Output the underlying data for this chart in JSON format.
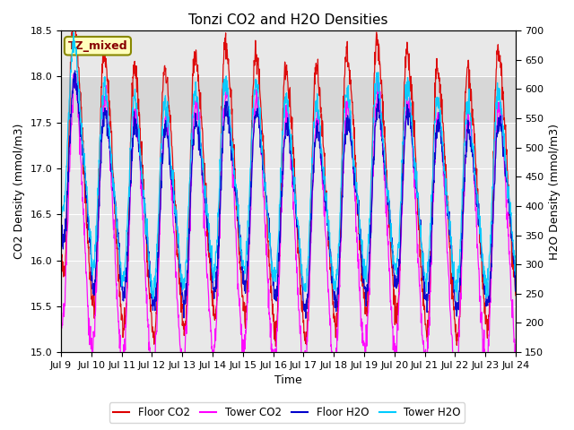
{
  "title": "Tonzi CO2 and H2O Densities",
  "xlabel": "Time",
  "ylabel_left": "CO2 Density (mmol/m3)",
  "ylabel_right": "H2O Density (mmol/m3)",
  "xlim_start": 0,
  "xlim_end": 15,
  "ylim_left": [
    15.0,
    18.5
  ],
  "ylim_right": [
    150,
    700
  ],
  "yticks_left": [
    15.0,
    15.5,
    16.0,
    16.5,
    17.0,
    17.5,
    18.0,
    18.5
  ],
  "yticks_right": [
    150,
    200,
    250,
    300,
    350,
    400,
    450,
    500,
    550,
    600,
    650,
    700
  ],
  "xtick_labels": [
    "Jul 9",
    "Jul 10",
    "Jul 11",
    "Jul 12",
    "Jul 13",
    "Jul 14",
    "Jul 15",
    "Jul 16",
    "Jul 17",
    "Jul 18",
    "Jul 19",
    "Jul 20",
    "Jul 21",
    "Jul 22",
    "Jul 23",
    "Jul 24"
  ],
  "annotation_text": "TZ_mixed",
  "annotation_facecolor": "#ffffbb",
  "annotation_edgecolor": "#888800",
  "annotation_textcolor": "#880000",
  "background_color": "#e8e8e8",
  "band_color": "#d0d0d0",
  "floor_co2_color": "#dd0000",
  "tower_co2_color": "#ff00ff",
  "floor_h2o_color": "#0000cc",
  "tower_h2o_color": "#00ccff",
  "legend_labels": [
    "Floor CO2",
    "Tower CO2",
    "Floor H2O",
    "Tower H2O"
  ],
  "title_fontsize": 11,
  "axis_label_fontsize": 9,
  "tick_fontsize": 8,
  "n_points": 1500
}
